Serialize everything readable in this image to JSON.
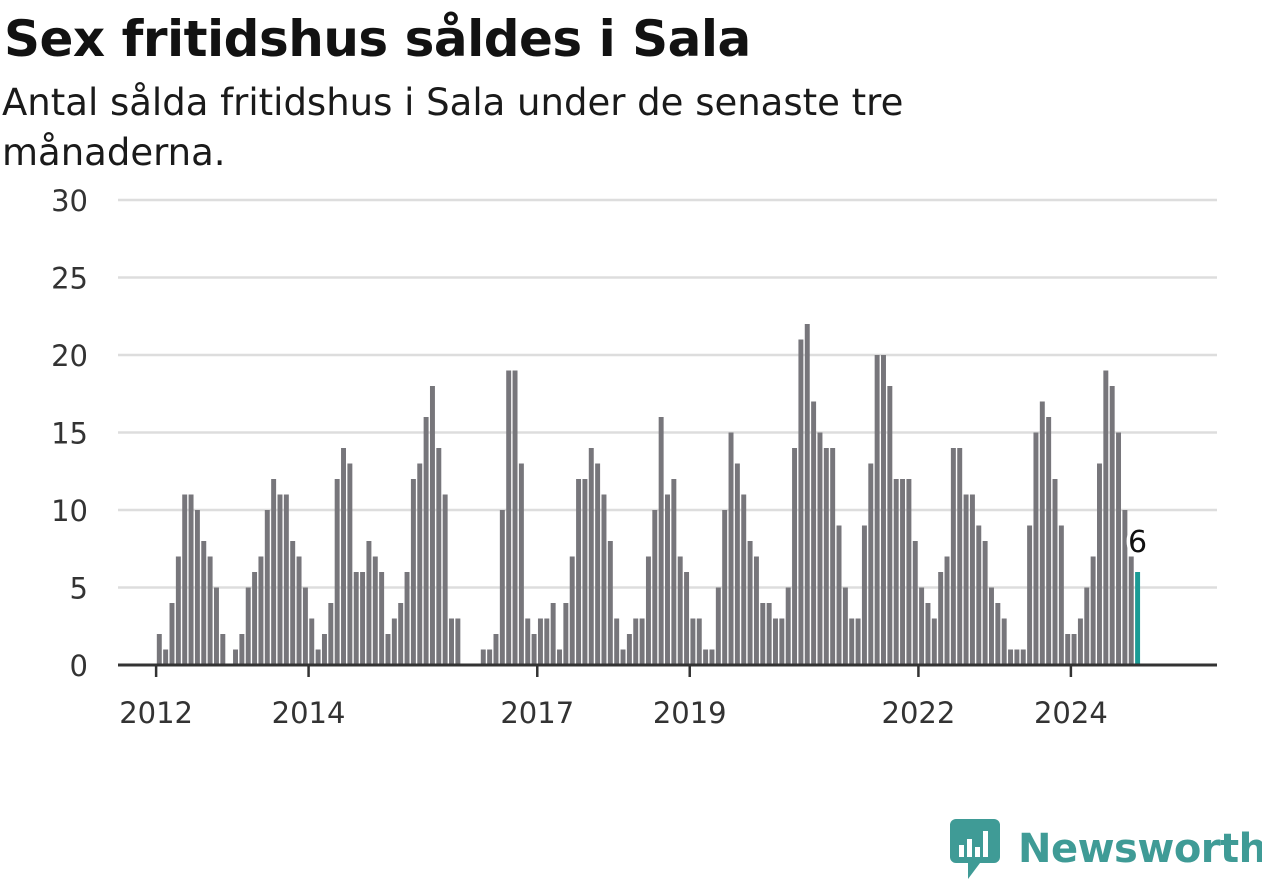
{
  "header": {
    "title": "Sex fritidshus såldes i Sala",
    "subtitle": "Antal sålda fritidshus i Sala under de senaste tre månaderna."
  },
  "brand": {
    "name": "Newsworthy",
    "color": "#3f9b96"
  },
  "colors": {
    "bar": "#77767b",
    "highlight": "#1a9b95",
    "grid": "#dddddd",
    "axis": "#333333"
  },
  "chart_data": {
    "type": "bar",
    "title": "Sex fritidshus såldes i Sala",
    "subtitle": "Antal sålda fritidshus i Sala under de senaste tre månaderna.",
    "ylim": [
      0,
      30
    ],
    "yticks": [
      0,
      5,
      10,
      15,
      20,
      25,
      30
    ],
    "xticks": [
      "2012",
      "2014",
      "2017",
      "2019",
      "2022",
      "2024"
    ],
    "grid": true,
    "x_start": "2011-07",
    "x_end": "2025-12",
    "first_bar": "2012-01",
    "values": [
      2,
      1,
      4,
      7,
      11,
      11,
      10,
      8,
      7,
      5,
      2,
      0,
      1,
      2,
      5,
      6,
      7,
      10,
      12,
      11,
      11,
      8,
      7,
      5,
      3,
      1,
      2,
      4,
      12,
      14,
      13,
      6,
      6,
      8,
      7,
      6,
      2,
      3,
      4,
      6,
      12,
      13,
      16,
      18,
      14,
      11,
      3,
      3,
      0,
      0,
      0,
      1,
      1,
      2,
      10,
      19,
      19,
      13,
      3,
      2,
      3,
      3,
      4,
      1,
      4,
      7,
      12,
      12,
      14,
      13,
      11,
      8,
      3,
      1,
      2,
      3,
      3,
      7,
      10,
      16,
      11,
      12,
      7,
      6,
      3,
      3,
      1,
      1,
      5,
      10,
      15,
      13,
      11,
      8,
      7,
      4,
      4,
      3,
      3,
      5,
      14,
      21,
      22,
      17,
      15,
      14,
      14,
      9,
      5,
      3,
      3,
      9,
      13,
      20,
      20,
      18,
      12,
      12,
      12,
      8,
      5,
      4,
      3,
      6,
      7,
      14,
      14,
      11,
      11,
      9,
      8,
      5,
      4,
      3,
      1,
      1,
      1,
      9,
      15,
      17,
      16,
      12,
      9,
      2,
      2,
      3,
      5,
      7,
      13,
      19,
      18,
      15,
      10,
      7,
      6
    ],
    "highlight_index": 154,
    "last_value_label": "6"
  }
}
